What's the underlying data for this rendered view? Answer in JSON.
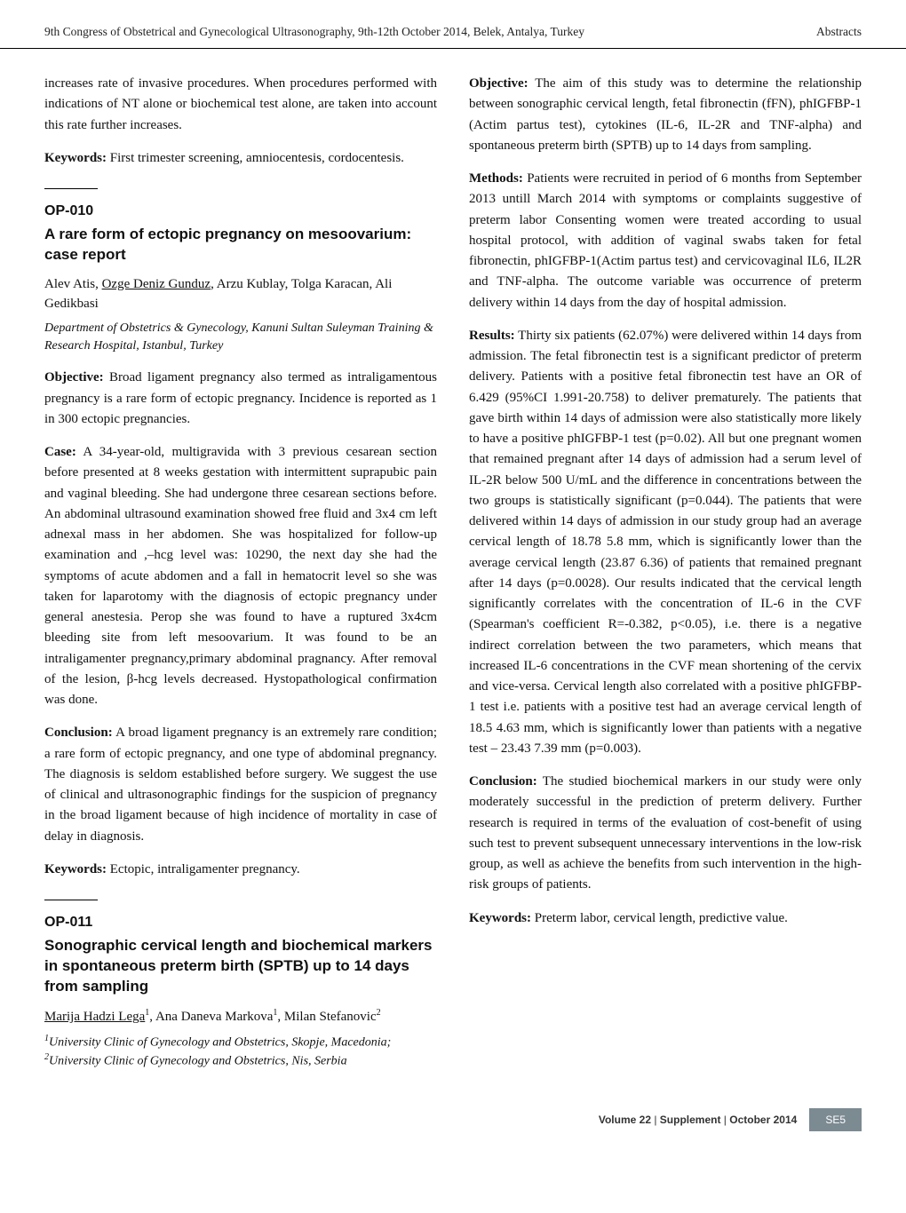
{
  "header": {
    "left": "9th Congress of Obstetrical and Gynecological Ultrasonography, 9th-12th October 2014, Belek, Antalya, Turkey",
    "right": "Abstracts"
  },
  "left_col": {
    "p1": "increases rate of invasive procedures. When procedures performed with indications of NT alone or biochemical test alone, are taken into account this rate further increases.",
    "kw1_label": "Keywords:",
    "kw1_text": " First trimester screening, amniocentesis, cordocentesis.",
    "op010": {
      "code": "OP-010",
      "title": "A rare form of ectopic pregnancy on mesoovarium: case report",
      "authors_pre": "Alev Atis, ",
      "authors_u": "Ozge Deniz Gunduz",
      "authors_post": ", Arzu Kublay, Tolga Karacan, Ali Gedikbasi",
      "affil": "Department of Obstetrics & Gynecology, Kanuni Sultan Suleyman Training & Research Hospital, Istanbul, Turkey",
      "obj_label": "Objective:",
      "obj_text": " Broad ligament pregnancy also termed as intraligamentous pregnancy is a rare form of ectopic pregnancy. Incidence is reported as 1 in 300 ectopic pregnancies.",
      "case_label": "Case:",
      "case_text": " A 34-year-old, multigravida with 3 previous cesarean section before presented at 8 weeks gestation with intermittent suprapubic pain and vaginal bleeding. She had undergone three cesarean sections before. An abdominal ultrasound examination showed free fluid and 3x4 cm left adnexal mass in her abdomen. She was hospitalized for follow-up examination and ,–hcg level was: 10290, the next day she had the symptoms of acute abdomen and a fall in hematocrit level so she was taken for laparotomy with the diagnosis of ectopic pregnancy under general anestesia. Perop she was found to have a ruptured 3x4cm bleeding site from left mesoovarium. It was found to be an intraligamenter pregnancy,primary abdominal pragnancy. After removal of the lesion, β-hcg levels decreased. Hystopathological confirmation was done.",
      "conc_label": "Conclusion:",
      "conc_text": " A broad ligament pregnancy is an extremely rare condition; a rare form of ectopic pregnancy, and one type of abdominal pregnancy. The diagnosis is seldom established before surgery. We suggest the use of clinical and ultrasonographic findings for the suspicion of pregnancy in the broad ligament because of high incidence of mortality in case of delay in diagnosis.",
      "kw_label": "Keywords:",
      "kw_text": " Ectopic, intraligamenter pregnancy."
    },
    "op011": {
      "code": "OP-011",
      "title": "Sonographic cervical length and biochemical markers in spontaneous preterm birth (SPTB) up to 14 days from sampling",
      "authors_u": "Marija Hadzi Lega",
      "sup1": "1",
      "authors_mid1": ", Ana Daneva Markova",
      "authors_mid2": ", Milan Stefanovic",
      "sup2": "2",
      "affil1_sup": "1",
      "affil1": "University Clinic of Gynecology and Obstetrics, Skopje, Macedonia; ",
      "affil2_sup": "2",
      "affil2": "University Clinic of Gynecology and Obstetrics, Nis, Serbia"
    }
  },
  "right_col": {
    "obj_label": "Objective:",
    "obj_text": " The aim of this study was to determine the relationship between sonographic cervical length, fetal fibronectin (fFN), phIGFBP-1 (Actim partus test), cytokines (IL-6, IL-2R and TNF-alpha) and spontaneous preterm birth (SPTB) up to 14 days from sampling.",
    "meth_label": "Methods:",
    "meth_text": " Patients were recruited in period of 6 months from September 2013 untill March 2014 with symptoms or complaints suggestive of preterm labor Consenting women were treated according to usual hospital protocol, with addition of vaginal swabs taken for fetal fibronectin, phIGFBP-1(Actim partus test) and cervicovaginal IL6, IL2R and TNF-alpha. The outcome variable was occurrence of preterm delivery within 14 days from the day of hospital admission.",
    "res_label": "Results:",
    "res_text": " Thirty six patients (62.07%) were delivered within 14 days from admission. The fetal fibronectin test is a significant predictor of preterm delivery. Patients with a positive fetal fibronectin test have an OR of 6.429 (95%CI 1.991-20.758) to deliver prematurely. The patients that gave birth within 14 days of admission were also statistically more likely to have a positive phIGFBP-1 test (p=0.02). All but one pregnant women that remained pregnant after 14 days of admission had a serum level of IL-2R below 500 U/mL and the difference in concentrations between the two groups is statistically significant (p=0.044). The patients that were delivered within 14 days of admission in our study group had an average cervical length of 18.78  5.8 mm, which is significantly lower than the average cervical length (23.87  6.36) of patients that remained pregnant after 14 days (p=0.0028). Our results indicated that the cervical length significantly correlates with the concentration of IL-6 in the CVF (Spearman's coefficient R=-0.382, p<0.05), i.e. there is a negative indirect correlation between the two parameters, which means that increased IL-6 concentrations in the CVF mean shortening of the cervix and vice-versa. Cervical length also correlated with a positive phIGFBP-1 test i.e. patients with a positive test had an average cervical length of 18.5  4.63 mm, which is significantly lower than patients with a negative test – 23.43  7.39 mm (p=0.003).",
    "conc_label": "Conclusion:",
    "conc_text": " The studied biochemical markers in our study were only moderately successful in the prediction of preterm delivery. Further research is required in terms of the evaluation of cost-benefit of using such test to prevent subsequent unnecessary interventions in the low-risk group, as well as achieve the benefits from such intervention in the high-risk groups of patients.",
    "kw_label": "Keywords:",
    "kw_text": " Preterm labor, cervical length, predictive value."
  },
  "footer": {
    "vol": "Volume 22",
    "sep1": " | ",
    "supp": "Supplement",
    "sep2": " | ",
    "month": "October 2014",
    "page": "SE5"
  }
}
